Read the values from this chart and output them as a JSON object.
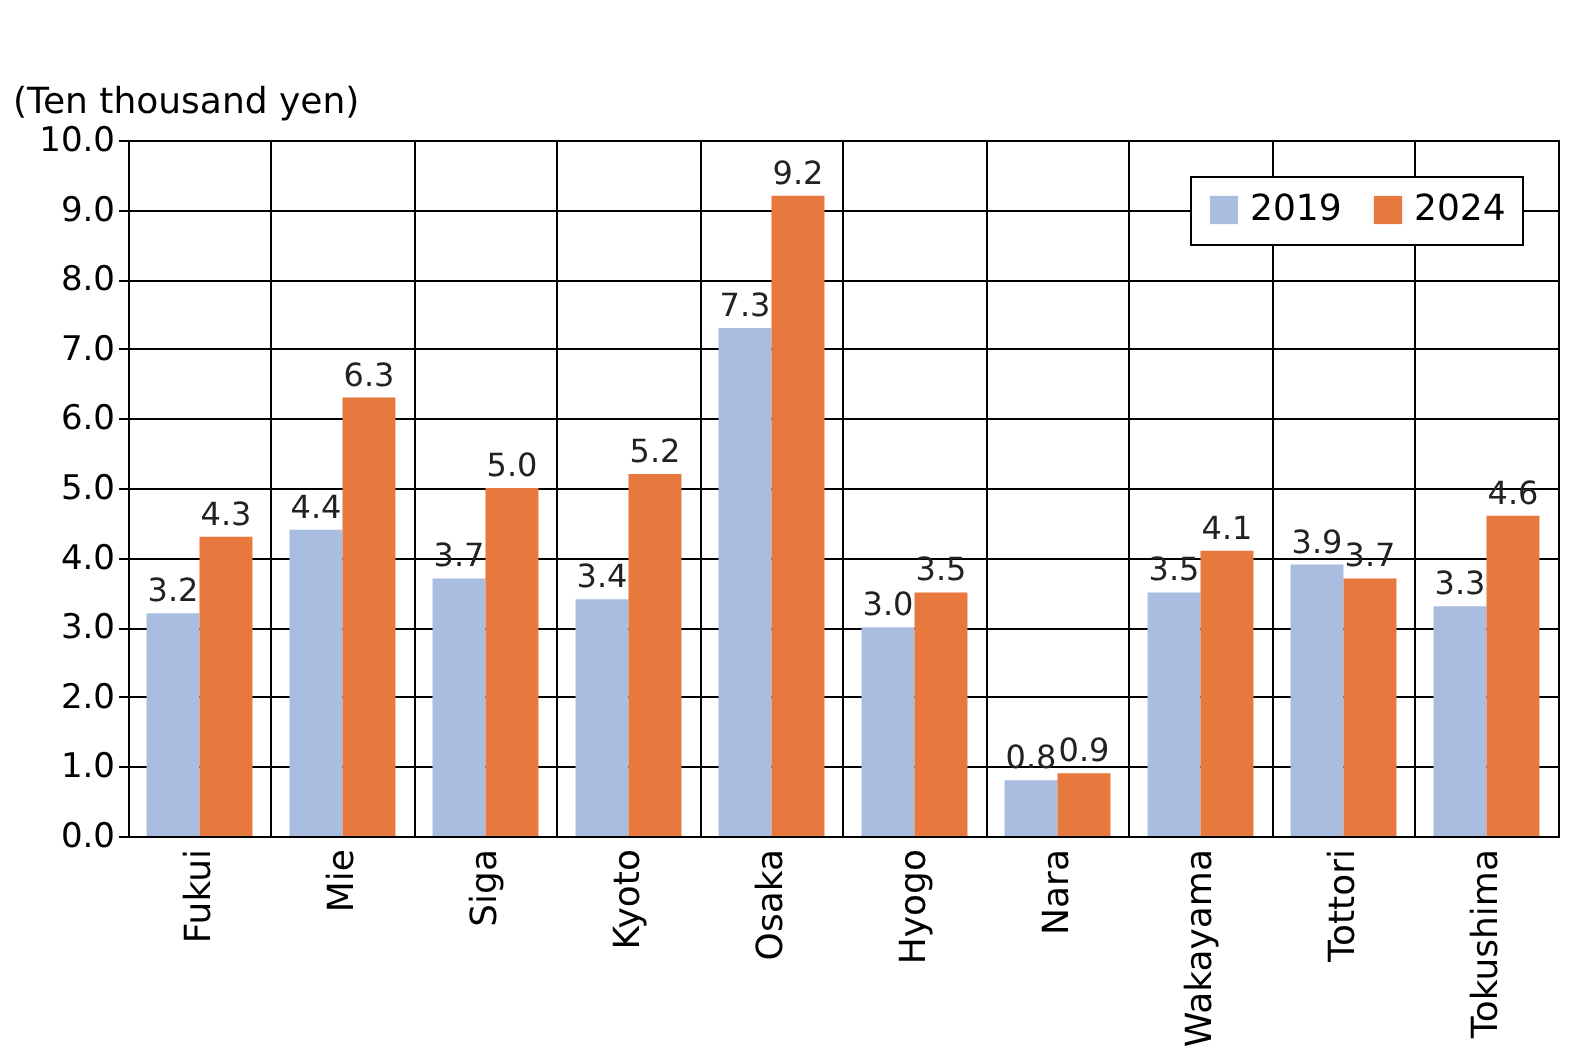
{
  "chart_data": {
    "type": "bar",
    "ylabel": "(Ten thousand yen)",
    "categories": [
      "Fukui",
      "Mie",
      "Siga",
      "Kyoto",
      "Osaka",
      "Hyogo",
      "Nara",
      "Wakayama",
      "Tottori",
      "Tokushima"
    ],
    "series": [
      {
        "name": "2019",
        "color": "#a9bde0",
        "values": [
          3.2,
          4.4,
          3.7,
          3.4,
          7.3,
          3.0,
          0.8,
          3.5,
          3.9,
          3.3
        ],
        "value_labels": [
          "3.2",
          "4.4",
          "3.7",
          "3.4",
          "7.3",
          "3.0",
          "0.8",
          "3.5",
          "3.9",
          "3.3"
        ]
      },
      {
        "name": "2024",
        "color": "#e8793e",
        "values": [
          4.3,
          6.3,
          5.0,
          5.2,
          9.2,
          3.5,
          0.9,
          4.1,
          3.7,
          4.6
        ],
        "value_labels": [
          "4.3",
          "6.3",
          "5.0",
          "5.2",
          "9.2",
          "3.5",
          "0.9",
          "4.1",
          "3.7",
          "4.6"
        ]
      }
    ],
    "ylim": [
      0,
      10
    ],
    "yticks": [
      {
        "value": 0,
        "label": "0.0"
      },
      {
        "value": 1,
        "label": "1.0"
      },
      {
        "value": 2,
        "label": "2.0"
      },
      {
        "value": 3,
        "label": "3.0"
      },
      {
        "value": 4,
        "label": "4.0"
      },
      {
        "value": 5,
        "label": "5.0"
      },
      {
        "value": 6,
        "label": "6.0"
      },
      {
        "value": 7,
        "label": "7.0"
      },
      {
        "value": 8,
        "label": "8.0"
      },
      {
        "value": 9,
        "label": "9.0"
      },
      {
        "value": 10,
        "label": "10.0"
      }
    ],
    "grid": true,
    "legend": "top right"
  }
}
